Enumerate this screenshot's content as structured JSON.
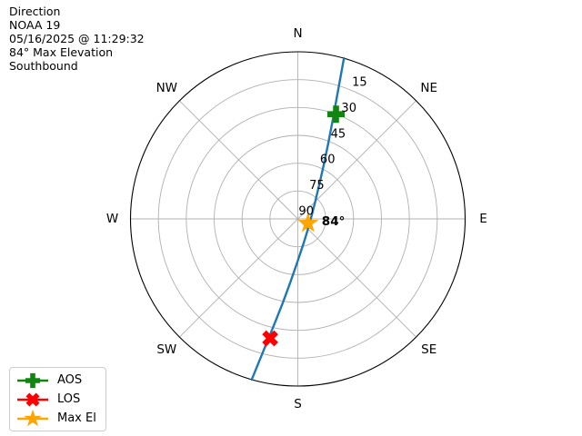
{
  "header": {
    "lines": [
      "Direction",
      "NOAA 19",
      "05/16/2025 @ 11:29:32",
      "84° Max Elevation",
      "Southbound"
    ]
  },
  "legend": {
    "items": [
      {
        "label": "AOS",
        "shape": "plus",
        "color": "#118511"
      },
      {
        "label": "LOS",
        "shape": "x",
        "color": "#ff0000"
      },
      {
        "label": "Max El",
        "shape": "star",
        "color": "#ffa500"
      }
    ]
  },
  "chart_data": {
    "type": "polar_satellite_pass",
    "title": "Direction",
    "satellite": "NOAA 19",
    "pass_time": "05/16/2025 @ 11:29:32",
    "max_elevation_deg": 84,
    "direction": "Southbound",
    "compass_labels": [
      "N",
      "NE",
      "E",
      "SE",
      "S",
      "SW",
      "W",
      "NW"
    ],
    "elevation_ticks": [
      15,
      30,
      45,
      60,
      75,
      90
    ],
    "elevation_range": [
      0,
      90
    ],
    "tick_label_azimuth_deg": 22.5,
    "grid_color": "#b0b0b0",
    "outline_color": "#000000",
    "track": {
      "color": "#1f77b4",
      "width": 2.4,
      "points_az_el": [
        [
          16,
          0
        ],
        [
          18,
          23
        ],
        [
          22,
          46
        ],
        [
          32,
          68
        ],
        [
          115,
          83
        ],
        [
          181,
          66
        ],
        [
          190,
          44
        ],
        [
          194,
          22
        ],
        [
          196,
          0
        ]
      ]
    },
    "markers": [
      {
        "name": "AOS",
        "az": 20,
        "el": 30,
        "shape": "plus",
        "color": "#118511"
      },
      {
        "name": "LOS",
        "az": 193,
        "el": 24,
        "shape": "x",
        "color": "#ff0000"
      },
      {
        "name": "Max El",
        "az": 113,
        "el": 84,
        "shape": "star",
        "color": "#ffa500",
        "annotation": "84°"
      }
    ]
  }
}
